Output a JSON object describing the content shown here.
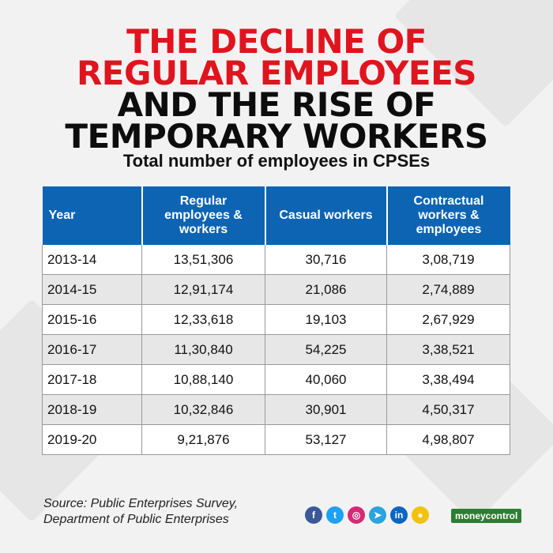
{
  "title": {
    "line1": "THE DECLINE OF",
    "line2": "REGULAR EMPLOYEES",
    "line3": "AND THE RISE OF",
    "line4": "TEMPORARY WORKERS"
  },
  "subtitle": "Total number of employees in CPSEs",
  "chart_data": {
    "type": "table",
    "columns": [
      "Year",
      "Regular employees & workers",
      "Casual workers",
      "Contractual workers & employees"
    ],
    "rows": [
      [
        "2013-14",
        "13,51,306",
        "30,716",
        "3,08,719"
      ],
      [
        "2014-15",
        "12,91,174",
        "21,086",
        "2,74,889"
      ],
      [
        "2015-16",
        "12,33,618",
        "19,103",
        "2,67,929"
      ],
      [
        "2016-17",
        "11,30,840",
        "54,225",
        "3,38,521"
      ],
      [
        "2017-18",
        "10,88,140",
        "40,060",
        "3,38,494"
      ],
      [
        "2018-19",
        "10,32,846",
        "30,901",
        "4,50,317"
      ],
      [
        "2019-20",
        "9,21,876",
        "53,127",
        "4,98,807"
      ]
    ]
  },
  "source": {
    "line1": "Source: Public Enterprises Survey,",
    "line2": "Department of Public Enterprises"
  },
  "social_icons": [
    {
      "name": "facebook-icon",
      "glyph": "f",
      "color": "#3b5998"
    },
    {
      "name": "twitter-icon",
      "glyph": "t",
      "color": "#1da1f2"
    },
    {
      "name": "instagram-icon",
      "glyph": "◎",
      "color": "#d62976"
    },
    {
      "name": "telegram-icon",
      "glyph": "➤",
      "color": "#2aa3df"
    },
    {
      "name": "linkedin-icon",
      "glyph": "in",
      "color": "#0a66c2"
    },
    {
      "name": "koo-icon",
      "glyph": "●",
      "color": "#f4c20d"
    }
  ],
  "brand": "moneycontrol",
  "colors": {
    "title_red": "#e0141e",
    "header_blue": "#0d64b3",
    "row_alt": "#e7e7e7",
    "brand_green": "#2e7d32"
  }
}
